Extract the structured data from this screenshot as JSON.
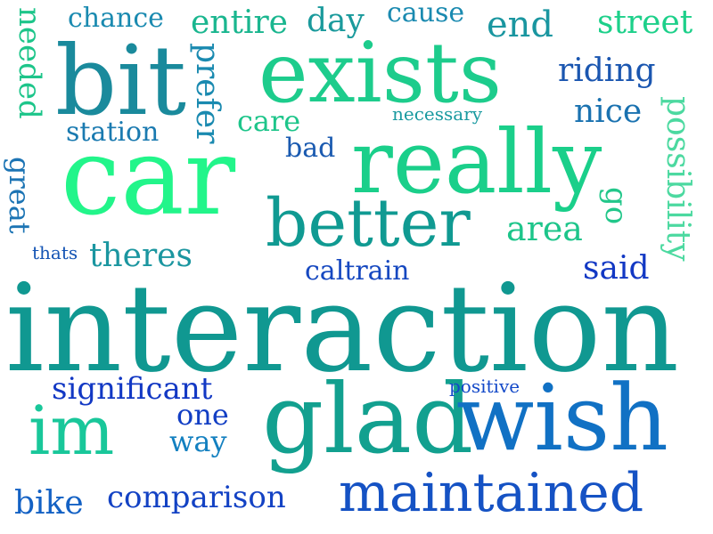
{
  "words": [
    {
      "text": "interaction",
      "color": "#109891"
    },
    {
      "text": "car",
      "color": "#22f58a"
    },
    {
      "text": "really",
      "color": "#1acf8a"
    },
    {
      "text": "exists",
      "color": "#1dcc8c"
    },
    {
      "text": "bit",
      "color": "#1a8a9c"
    },
    {
      "text": "glad",
      "color": "#12a08f"
    },
    {
      "text": "wish",
      "color": "#1171c4"
    },
    {
      "text": "better",
      "color": "#109a92"
    },
    {
      "text": "maintained",
      "color": "#1552c4"
    },
    {
      "text": "im",
      "color": "#19c79a"
    },
    {
      "text": "significant",
      "color": "#1238c4"
    },
    {
      "text": "comparison",
      "color": "#1342c4"
    },
    {
      "text": "one",
      "color": "#123ec4"
    },
    {
      "text": "way",
      "color": "#1380c0"
    },
    {
      "text": "bike",
      "color": "#1361c4"
    },
    {
      "text": "positive",
      "color": "#1248c8"
    },
    {
      "text": "possibility",
      "color": "#4cd9a0"
    },
    {
      "text": "theres",
      "color": "#1b96a0"
    },
    {
      "text": "thats",
      "color": "#1454b4"
    },
    {
      "text": "caltrain",
      "color": "#1648c0"
    },
    {
      "text": "said",
      "color": "#1238c4"
    },
    {
      "text": "area",
      "color": "#1dc58a"
    },
    {
      "text": "go",
      "color": "#22c78a"
    },
    {
      "text": "great",
      "color": "#1c74b4"
    },
    {
      "text": "needed",
      "color": "#1dc58a"
    },
    {
      "text": "chance",
      "color": "#1a8ab0"
    },
    {
      "text": "entire",
      "color": "#1ab68f"
    },
    {
      "text": "day",
      "color": "#1a9a9c"
    },
    {
      "text": "cause",
      "color": "#1a8ab0"
    },
    {
      "text": "end",
      "color": "#1a96a0"
    },
    {
      "text": "street",
      "color": "#1dd08a"
    },
    {
      "text": "riding",
      "color": "#1a56b0"
    },
    {
      "text": "nice",
      "color": "#1a72b0"
    },
    {
      "text": "necessary",
      "color": "#1a9aa0"
    },
    {
      "text": "care",
      "color": "#1dc58a"
    },
    {
      "text": "station",
      "color": "#1a7ab0"
    },
    {
      "text": "prefer",
      "color": "#1a8ab0"
    },
    {
      "text": "bad",
      "color": "#1a5ab0"
    }
  ]
}
